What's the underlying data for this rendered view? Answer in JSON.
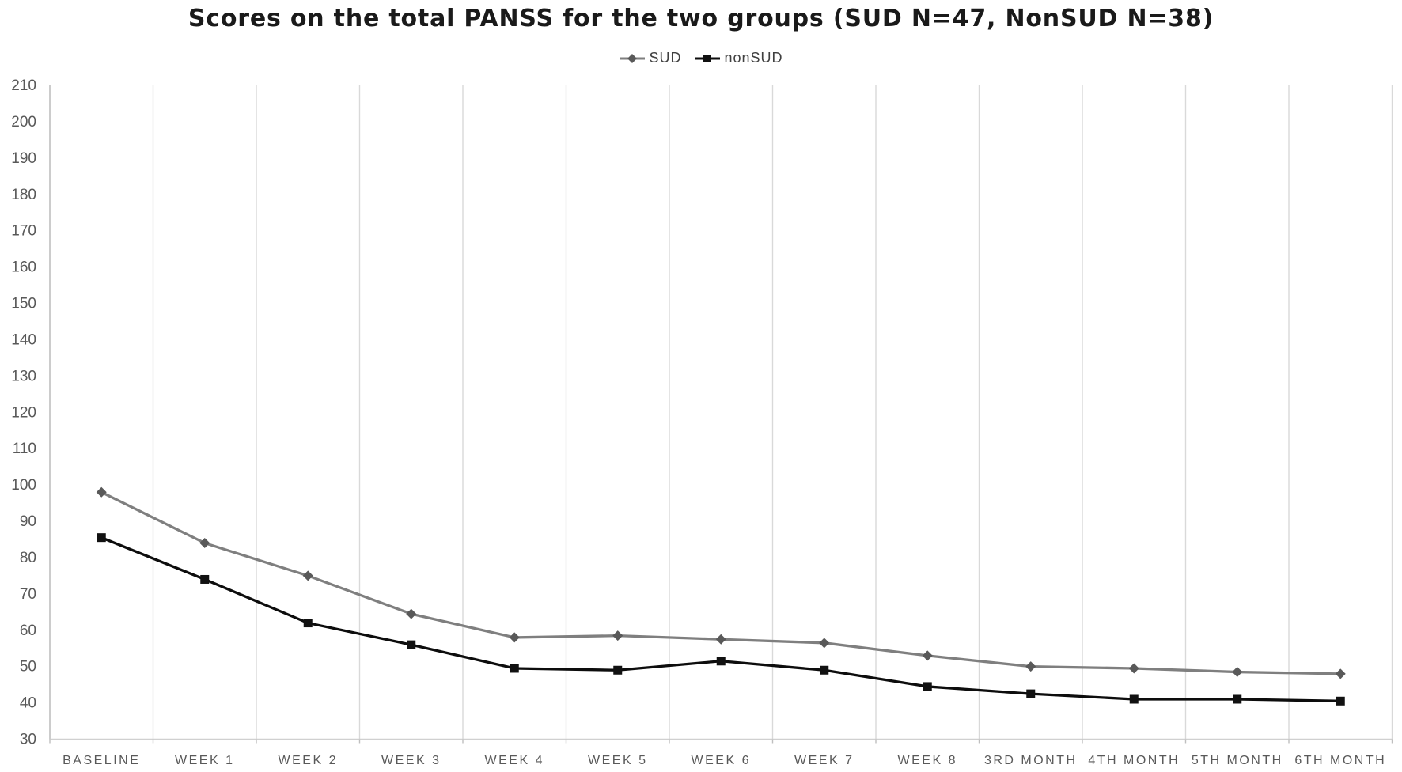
{
  "chart_data": {
    "type": "line",
    "title": "Scores on the total PANSS for the two groups (SUD N=47, NonSUD N=38)",
    "categories": [
      "BASELINE",
      "WEEK 1",
      "WEEK 2",
      "WEEK 3",
      "WEEK 4",
      "WEEK 5",
      "WEEK 6",
      "WEEK 7",
      "WEEK 8",
      "3RD MONTH",
      "4TH MONTH",
      "5TH MONTH",
      "6TH MONTH"
    ],
    "series": [
      {
        "name": "SUD",
        "marker": "diamond",
        "line_color": "#7f7f7f",
        "marker_color": "#595959",
        "values": [
          98,
          84,
          75,
          64.5,
          58,
          58.5,
          57.5,
          56.5,
          53,
          50,
          49.5,
          48.5,
          48
        ]
      },
      {
        "name": "nonSUD",
        "marker": "square",
        "line_color": "#0d0d0d",
        "marker_color": "#111111",
        "values": [
          85.5,
          74,
          62,
          56,
          49.5,
          49,
          51.5,
          49,
          44.5,
          42.5,
          41,
          41,
          40.5
        ]
      }
    ],
    "ylim": [
      30,
      210
    ],
    "ytick_step": 10,
    "xlabel": "",
    "ylabel": "",
    "grid": "vertical-only",
    "legend_position": "top-center"
  },
  "styles": {
    "background": "#ffffff",
    "gridline_color": "#d9d9d9",
    "y_axis_line_color": "#bfbfbf",
    "x_axis_line_color": "#d0d0d0",
    "tick_color": "#bfbfbf",
    "axis_label_color": "#595959",
    "title_color": "#1a1a1a",
    "legend_text_color": "#404040"
  }
}
